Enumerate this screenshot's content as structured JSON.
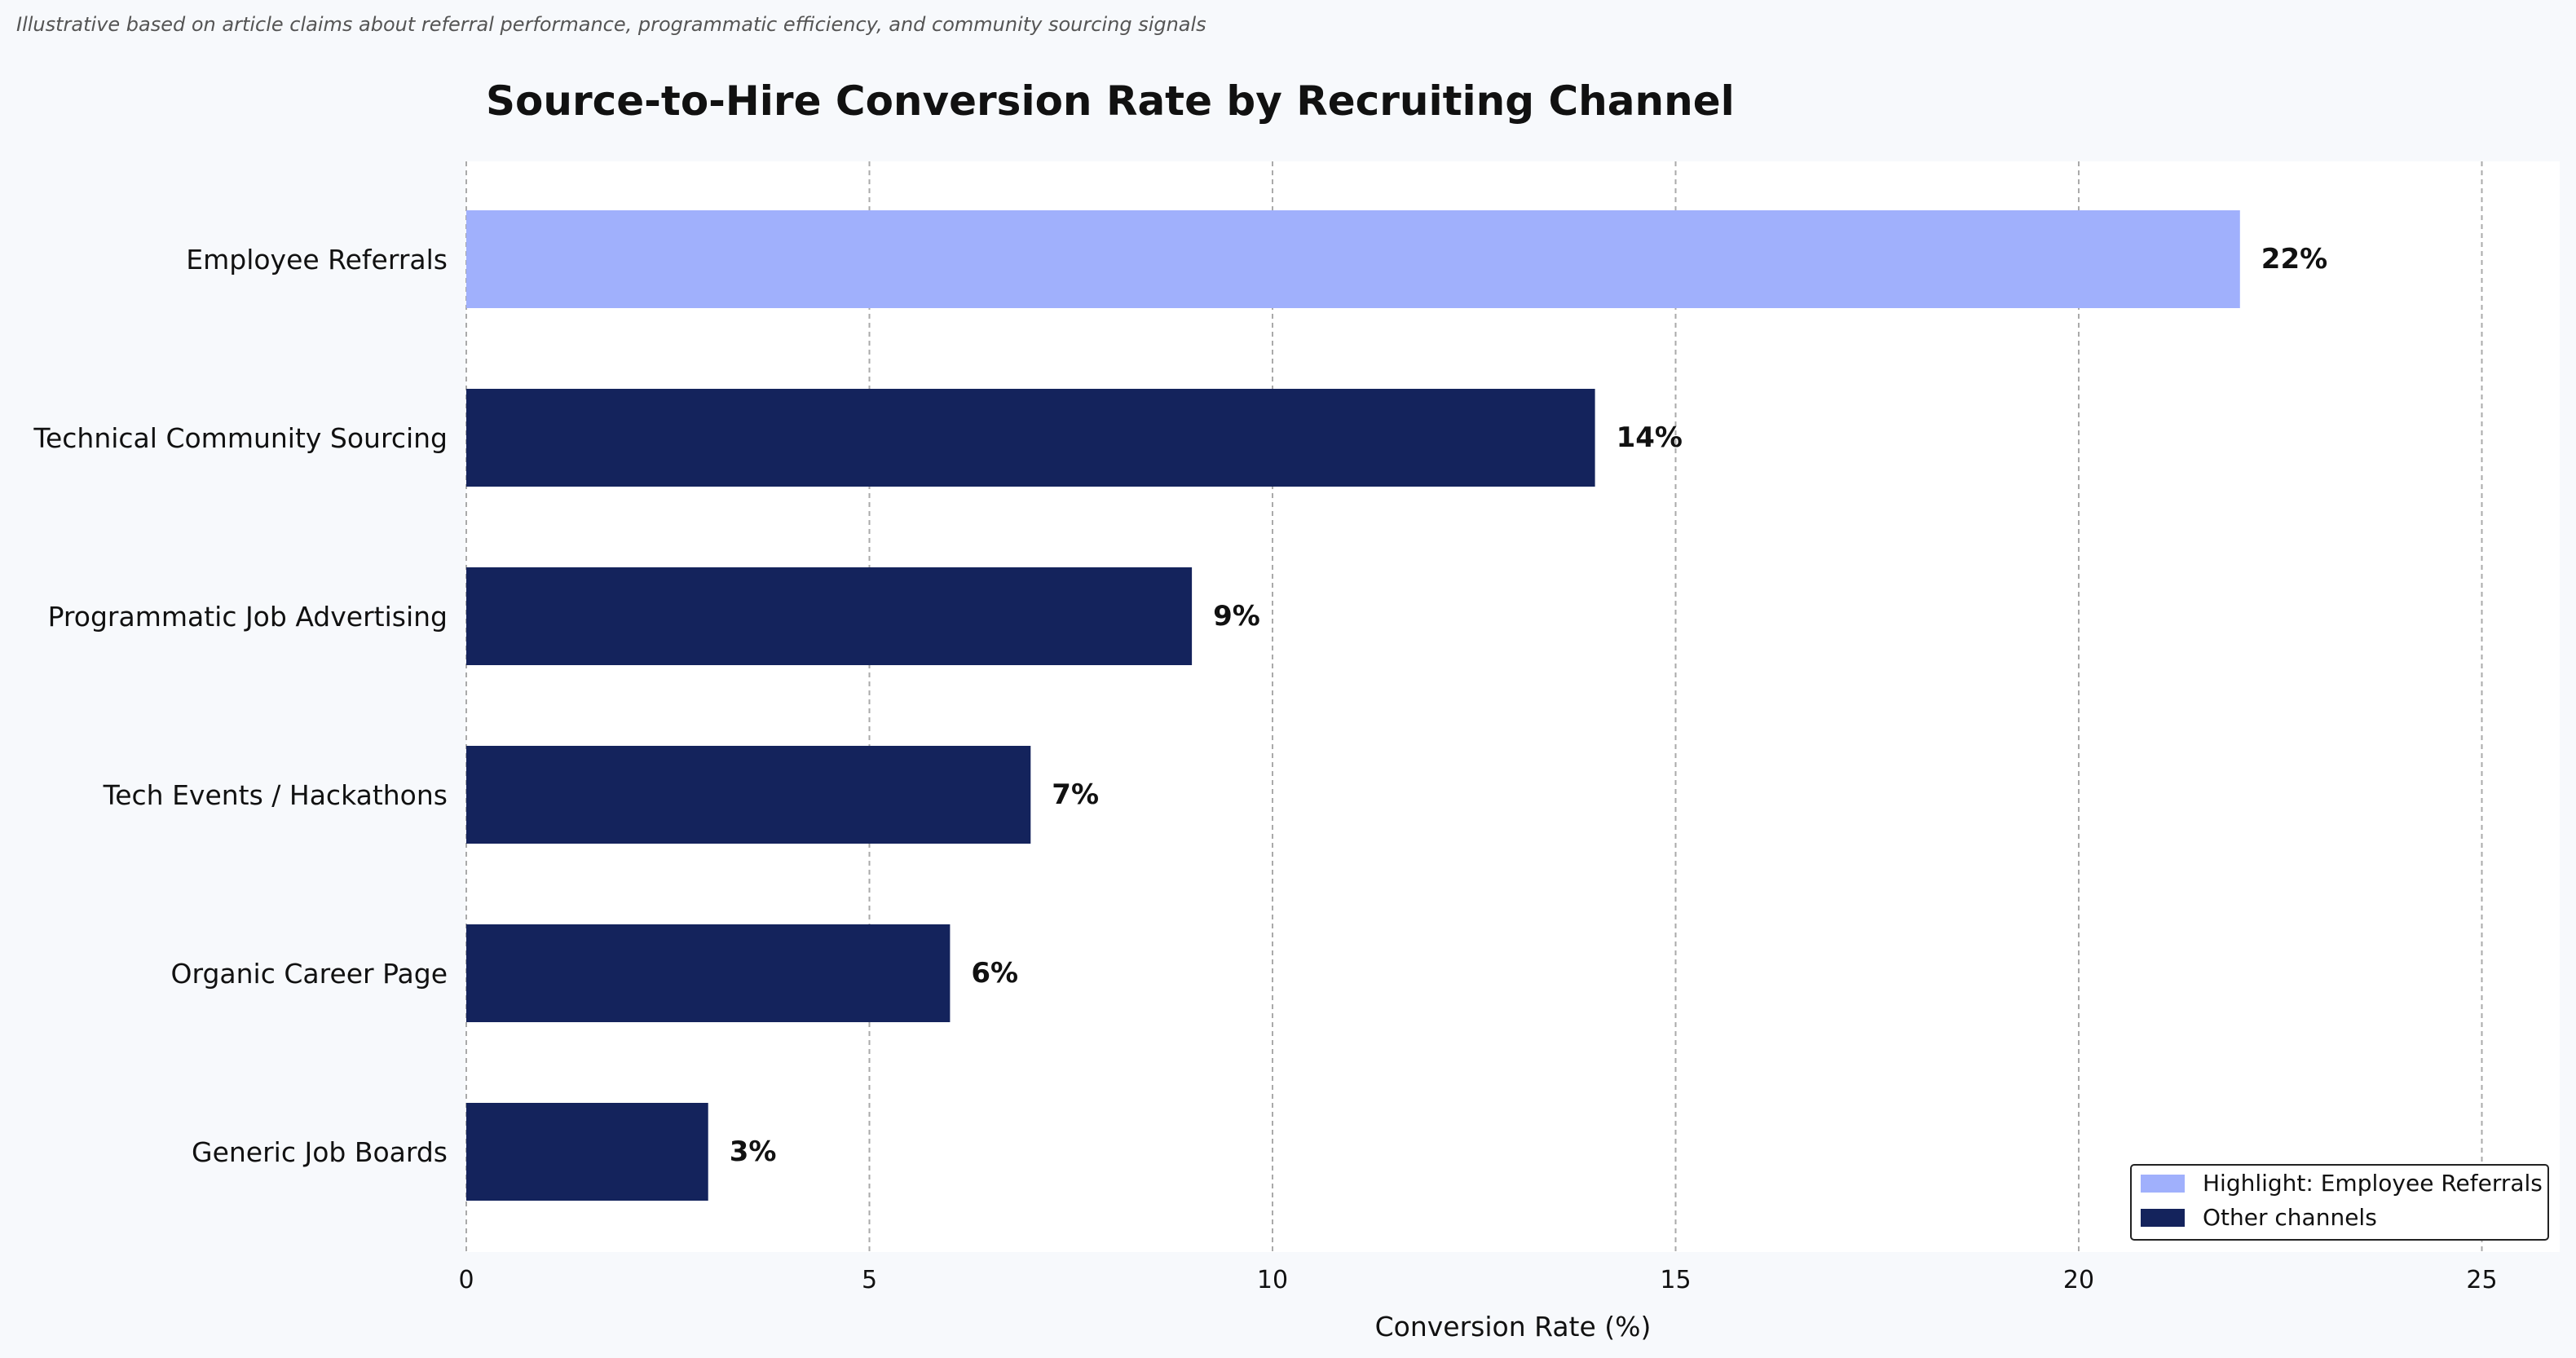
{
  "note": "Illustrative based on article claims about referral performance, programmatic efficiency, and community sourcing signals",
  "chart_data": {
    "type": "bar",
    "orientation": "horizontal",
    "title": "Source-to-Hire Conversion Rate by Recruiting Channel",
    "xlabel": "Conversion Rate (%)",
    "ylabel": "",
    "xlim": [
      0,
      26
    ],
    "xticks": [
      0,
      5,
      10,
      15,
      20,
      25
    ],
    "grid": "x-dashed",
    "categories": [
      "Employee Referrals",
      "Technical Community Sourcing",
      "Programmatic Job Advertising",
      "Tech Events / Hackathons",
      "Organic Career Page",
      "Generic Job Boards"
    ],
    "values": [
      22,
      14,
      9,
      7,
      6,
      3
    ],
    "data_labels": [
      "22%",
      "14%",
      "9%",
      "7%",
      "6%",
      "3%"
    ],
    "highlight_index": 0,
    "colors": {
      "highlight": "#a0b0fc",
      "other": "#14235c"
    },
    "legend": {
      "placement": "bottom-right",
      "entries": [
        {
          "label": "Highlight: Employee Referrals",
          "color": "#a0b0fc"
        },
        {
          "label": "Other channels",
          "color": "#14235c"
        }
      ]
    }
  }
}
